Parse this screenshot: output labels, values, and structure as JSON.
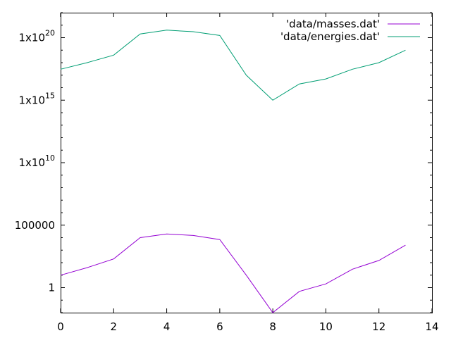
{
  "chart_data": {
    "type": "line",
    "title": "",
    "xlabel": "",
    "ylabel": "",
    "xlim": [
      0,
      14
    ],
    "ylim": [
      0.01,
      1e+22
    ],
    "yscale": "log",
    "grid": false,
    "legend_position": "top-right",
    "x_ticks": [
      {
        "value": 0,
        "label": "0"
      },
      {
        "value": 2,
        "label": "2"
      },
      {
        "value": 4,
        "label": "4"
      },
      {
        "value": 6,
        "label": "6"
      },
      {
        "value": 8,
        "label": "8"
      },
      {
        "value": 10,
        "label": "10"
      },
      {
        "value": 12,
        "label": "12"
      },
      {
        "value": 14,
        "label": "14"
      }
    ],
    "y_ticks": [
      {
        "value": 1,
        "base": "1",
        "exp": ""
      },
      {
        "value": 100000,
        "base": "100000",
        "exp": ""
      },
      {
        "value": 10000000000.0,
        "base": "1x10",
        "exp": "10"
      },
      {
        "value": 1000000000000000.0,
        "base": "1x10",
        "exp": "15"
      },
      {
        "value": 1e+20,
        "base": "1x10",
        "exp": "20"
      }
    ],
    "series": [
      {
        "name": "'data/masses.dat'",
        "color": "#9400d3",
        "x": [
          0,
          1,
          2,
          3,
          4,
          5,
          6,
          7,
          8,
          9,
          10,
          11,
          12,
          13
        ],
        "y": [
          10,
          40,
          200,
          10000,
          20000,
          15000,
          7000,
          10,
          0.01,
          0.5,
          2,
          30,
          150,
          2500
        ]
      },
      {
        "name": "'data/energies.dat'",
        "color": "#009e73",
        "x": [
          0,
          1,
          2,
          3,
          4,
          5,
          6,
          7,
          8,
          9,
          10,
          11,
          12,
          13
        ],
        "y": [
          3e+17,
          1e+18,
          4e+18,
          2e+20,
          4e+20,
          3e+20,
          1.5e+20,
          1e+17,
          1000000000000000.0,
          2e+16,
          5e+16,
          3e+17,
          1e+18,
          1e+19
        ]
      }
    ]
  }
}
